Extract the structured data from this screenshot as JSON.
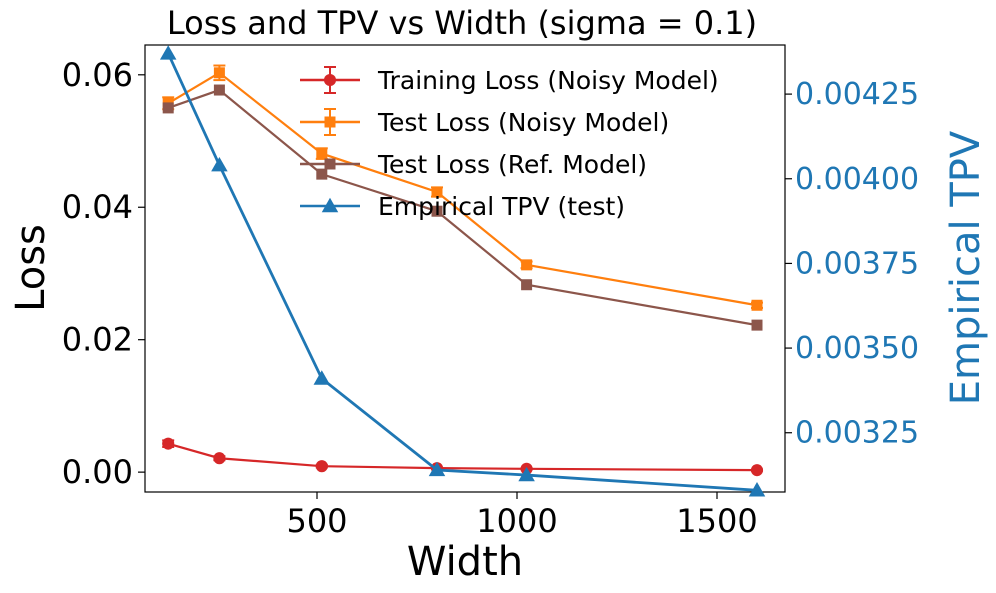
{
  "chart_data": {
    "type": "line",
    "title": "Loss and TPV vs Width (sigma = 0.1)",
    "xlabel": "Width",
    "ylabel": "Loss",
    "ylabel_right": "Empirical TPV",
    "xlim": [
      70,
      1670
    ],
    "ylim": [
      -0.003,
      0.0645
    ],
    "ylim_right": [
      0.003075,
      0.004395
    ],
    "x_ticks": [
      500,
      1000,
      1500
    ],
    "x_tick_labels": [
      "500",
      "1000",
      "1500"
    ],
    "y_ticks": [
      0.0,
      0.02,
      0.04,
      0.06
    ],
    "y_tick_labels": [
      "0.00",
      "0.02",
      "0.04",
      "0.06"
    ],
    "y_ticks_right": [
      0.00325,
      0.0035,
      0.00375,
      0.004,
      0.00425
    ],
    "y_tick_labels_right": [
      "0.00325",
      "0.00350",
      "0.00375",
      "0.00400",
      "0.00425"
    ],
    "legend_position": "top-right",
    "series": [
      {
        "name": "Training Loss (Noisy Model)",
        "color": "#d62728",
        "marker": "circle",
        "axis": "left",
        "x": [
          128,
          256,
          512,
          800,
          1024,
          1600
        ],
        "values": [
          0.0043,
          0.0021,
          0.0009,
          0.0006,
          0.0005,
          0.0003
        ],
        "errors": [
          0.0005,
          0.0003,
          0.0002,
          0.0001,
          0.0001,
          0.0001
        ]
      },
      {
        "name": "Test Loss (Noisy Model)",
        "color": "#ff7f0e",
        "marker": "square",
        "axis": "left",
        "x": [
          128,
          256,
          512,
          800,
          1024,
          1600
        ],
        "values": [
          0.0557,
          0.0603,
          0.0481,
          0.0423,
          0.0313,
          0.0252
        ],
        "errors": [
          0.0009,
          0.0011,
          0.0008,
          0.0007,
          0.0005,
          0.0004
        ]
      },
      {
        "name": "Test Loss (Ref. Model)",
        "color": "#8c564b",
        "marker": "square",
        "axis": "left",
        "x": [
          128,
          256,
          512,
          800,
          1024,
          1600
        ],
        "values": [
          0.055,
          0.0577,
          0.045,
          0.0394,
          0.0283,
          0.0222
        ],
        "errors": []
      },
      {
        "name": "Empirical TPV (test)",
        "color": "#1f77b4",
        "marker": "triangle",
        "axis": "right",
        "x": [
          128,
          256,
          512,
          800,
          1024,
          1600
        ],
        "values": [
          0.00437,
          0.00404,
          0.00341,
          0.00314,
          0.003125,
          0.00308
        ],
        "errors": []
      }
    ]
  }
}
